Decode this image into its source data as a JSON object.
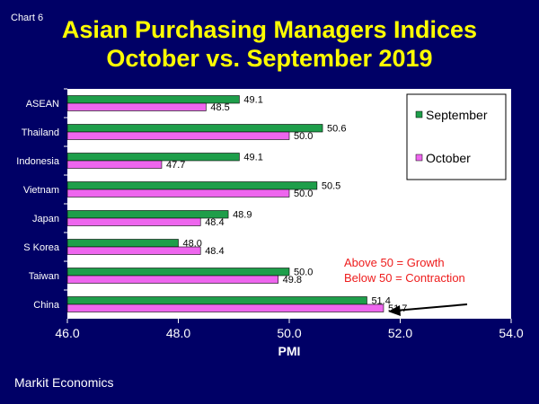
{
  "page": {
    "chart_label": "Chart 6",
    "title_line1": "Asian Purchasing Managers Indices",
    "title_line2": "October vs. September 2019",
    "source": "Markit Economics"
  },
  "colors": {
    "background": "#000066",
    "title": "#ffff00",
    "plot_bg": "#ffffff",
    "september": "#1e9e4a",
    "october": "#ee66ee",
    "annotation": "#ee1c1c"
  },
  "chart_data": {
    "type": "bar",
    "orientation": "horizontal",
    "categories": [
      "ASEAN",
      "Thailand",
      "Indonesia",
      "Vietnam",
      "Japan",
      "S Korea",
      "Taiwan",
      "China"
    ],
    "series": [
      {
        "name": "September",
        "values": [
          49.1,
          50.6,
          49.1,
          50.5,
          48.9,
          48.0,
          50.0,
          51.4
        ]
      },
      {
        "name": "October",
        "values": [
          48.5,
          50.0,
          47.7,
          50.0,
          48.4,
          48.4,
          49.8,
          51.7
        ]
      }
    ],
    "xlim": [
      46.0,
      54.0
    ],
    "xticks": [
      "46.0",
      "48.0",
      "50.0",
      "52.0",
      "54.0"
    ],
    "xlabel": "PMI",
    "ylabel": "",
    "legend": [
      "September",
      "October"
    ],
    "legend_position": "top-right",
    "annotations": [
      "Above 50 = Growth",
      "Below 50 = Contraction"
    ],
    "arrow_target": "China October"
  }
}
